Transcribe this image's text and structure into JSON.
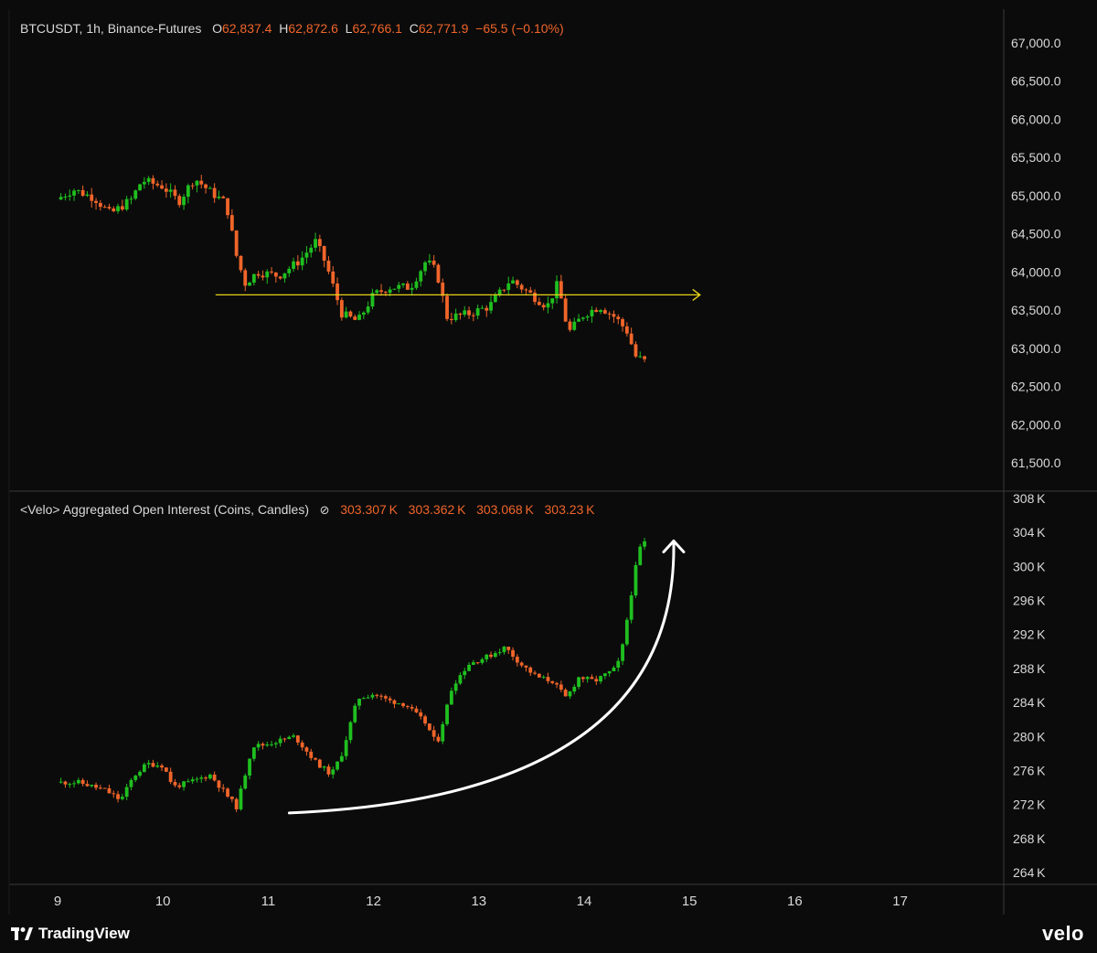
{
  "colors": {
    "up": "#1fbf1f",
    "down": "#f0652a",
    "axis_text": "#d9d9d9",
    "grid": "#2a2a2a",
    "level_line": "#e8d21a",
    "arrow": "#ffffff"
  },
  "price_legend": {
    "symbol": "BTCUSDT, 1h, Binance-Futures",
    "o_label": "O",
    "o_value": "62,837.4",
    "h_label": "H",
    "h_value": "62,872.6",
    "l_label": "L",
    "l_value": "62,766.1",
    "c_label": "C",
    "c_value": "62,771.9",
    "change": "−65.5 (−0.10%)"
  },
  "oi_legend": {
    "title": "<Velo> Aggregated Open Interest (Coins, Candles)",
    "icon": "eye-off-icon",
    "v1": "303.307 K",
    "v2": "303.362 K",
    "v3": "303.068 K",
    "v4": "303.23 K"
  },
  "branding": {
    "left": "TradingView",
    "right": "velo"
  },
  "chart_data": [
    {
      "type": "candlestick",
      "title": "BTCUSDT, 1h, Binance-Futures",
      "ylim": [
        61100,
        67300
      ],
      "y_ticks": [
        "67,000.0",
        "66,500.0",
        "66,000.0",
        "65,500.0",
        "65,000.0",
        "64,500.0",
        "64,000.0",
        "63,500.0",
        "63,000.0",
        "62,500.0",
        "62,000.0",
        "61,500.0"
      ],
      "y_tick_values": [
        67000,
        66500,
        66000,
        65500,
        65000,
        64500,
        64000,
        63500,
        63000,
        62500,
        62000,
        61500
      ],
      "x_ticks": [
        "9",
        "10",
        "11",
        "12",
        "13",
        "14",
        "15",
        "16",
        "17"
      ],
      "x_tick_values": [
        9,
        10,
        11,
        12,
        13,
        14,
        15,
        16,
        17
      ],
      "horizontal_level": {
        "price": 63700,
        "x_start": 10.5,
        "x_end": 15.1
      },
      "path": [
        [
          8.99,
          64950
        ],
        [
          9.15,
          65080
        ],
        [
          9.35,
          64970
        ],
        [
          9.5,
          64760
        ],
        [
          9.7,
          64950
        ],
        [
          9.8,
          65200
        ],
        [
          10.0,
          65120
        ],
        [
          10.15,
          64920
        ],
        [
          10.3,
          65230
        ],
        [
          10.45,
          65050
        ],
        [
          10.6,
          64900
        ],
        [
          10.7,
          64200
        ],
        [
          10.78,
          63850
        ],
        [
          10.9,
          64000
        ],
        [
          11.1,
          63950
        ],
        [
          11.3,
          64150
        ],
        [
          11.45,
          64400
        ],
        [
          11.55,
          64100
        ],
        [
          11.7,
          63450
        ],
        [
          11.85,
          63350
        ],
        [
          12.0,
          63700
        ],
        [
          12.15,
          63800
        ],
        [
          12.35,
          63800
        ],
        [
          12.5,
          64150
        ],
        [
          12.6,
          64000
        ],
        [
          12.7,
          63400
        ],
        [
          12.9,
          63450
        ],
        [
          13.1,
          63550
        ],
        [
          13.3,
          63900
        ],
        [
          13.5,
          63700
        ],
        [
          13.65,
          63550
        ],
        [
          13.75,
          63850
        ],
        [
          13.85,
          63200
        ],
        [
          14.0,
          63450
        ],
        [
          14.15,
          63550
        ],
        [
          14.3,
          63400
        ],
        [
          14.42,
          63200
        ],
        [
          14.48,
          62900
        ],
        [
          14.6,
          62810
        ]
      ],
      "last": {
        "open": 62837.4,
        "high": 62872.6,
        "low": 62766.1,
        "close": 62771.9,
        "change": -65.5,
        "change_pct": -0.1
      }
    },
    {
      "type": "candlestick",
      "title": "<Velo> Aggregated Open Interest (Coins, Candles)",
      "ylim": [
        262000,
        309000
      ],
      "y_ticks": [
        "308 K",
        "304 K",
        "300 K",
        "296 K",
        "292 K",
        "288 K",
        "284 K",
        "280 K",
        "276 K",
        "272 K",
        "268 K",
        "264 K"
      ],
      "y_tick_values": [
        308000,
        304000,
        300000,
        296000,
        292000,
        288000,
        284000,
        280000,
        276000,
        272000,
        268000,
        264000
      ],
      "x_ticks": [
        "9",
        "10",
        "11",
        "12",
        "13",
        "14",
        "15",
        "16",
        "17"
      ],
      "x_tick_values": [
        9,
        10,
        11,
        12,
        13,
        14,
        15,
        16,
        17
      ],
      "arrow": {
        "from": [
          11.2,
          271000
        ],
        "control": [
          14.9,
          273000
        ],
        "to": [
          14.85,
          303000
        ]
      },
      "path": [
        [
          8.99,
          274600
        ],
        [
          9.2,
          274600
        ],
        [
          9.45,
          273700
        ],
        [
          9.6,
          272500
        ],
        [
          9.72,
          275300
        ],
        [
          9.85,
          276800
        ],
        [
          10.0,
          276600
        ],
        [
          10.1,
          274100
        ],
        [
          10.25,
          274600
        ],
        [
          10.45,
          275500
        ],
        [
          10.6,
          273200
        ],
        [
          10.7,
          271700
        ],
        [
          10.85,
          278900
        ],
        [
          10.95,
          279000
        ],
        [
          11.25,
          280000
        ],
        [
          11.45,
          277000
        ],
        [
          11.6,
          275500
        ],
        [
          11.7,
          278000
        ],
        [
          11.85,
          284500
        ],
        [
          12.0,
          285000
        ],
        [
          12.15,
          284200
        ],
        [
          12.3,
          283800
        ],
        [
          12.5,
          281500
        ],
        [
          12.6,
          279000
        ],
        [
          12.75,
          286000
        ],
        [
          12.9,
          288500
        ],
        [
          13.1,
          289500
        ],
        [
          13.25,
          290500
        ],
        [
          13.4,
          288500
        ],
        [
          13.55,
          287000
        ],
        [
          13.7,
          286500
        ],
        [
          13.83,
          284500
        ],
        [
          13.95,
          287000
        ],
        [
          14.1,
          286500
        ],
        [
          14.3,
          288000
        ],
        [
          14.35,
          289500
        ],
        [
          14.45,
          297000
        ],
        [
          14.52,
          302000
        ],
        [
          14.6,
          303230
        ]
      ],
      "last": {
        "open": 303307,
        "high": 303362,
        "low": 303068,
        "close": 303230
      }
    }
  ]
}
